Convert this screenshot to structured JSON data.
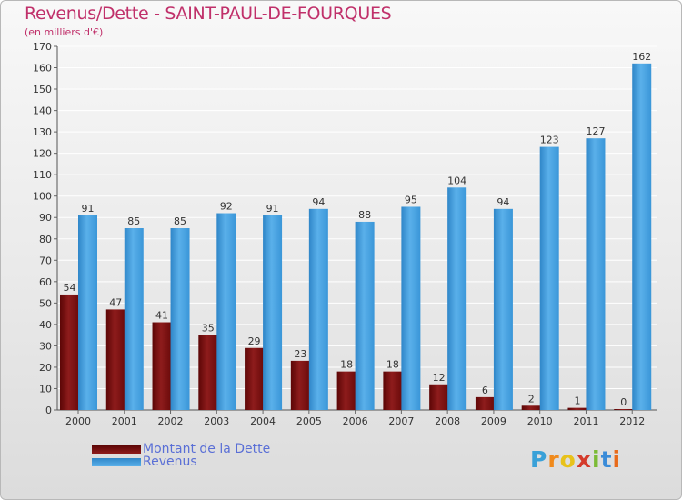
{
  "header": {
    "title": "Revenus/Dette - SAINT-PAUL-DE-FOURQUES",
    "subtitle": "(en milliers d'€)"
  },
  "logo": {
    "text": "Proxiti",
    "letters": [
      "P",
      "r",
      "o",
      "x",
      "i",
      "t",
      "i"
    ],
    "colors": [
      "#3aa1d8",
      "#f08a1c",
      "#e8c21a",
      "#d43a2a",
      "#7cbb36",
      "#3a8bd8",
      "#e86a1a"
    ]
  },
  "colors": {
    "dette": "#7a1212",
    "revenus": "#3d9bde",
    "title": "#c0306a",
    "legend_text": "#5a6fd6"
  },
  "chart_data": {
    "type": "bar",
    "title": "Revenus/Dette - SAINT-PAUL-DE-FOURQUES",
    "subtitle": "(en milliers d'€)",
    "xlabel": "",
    "ylabel": "",
    "ylim": [
      0,
      170
    ],
    "yticks": [
      0,
      10,
      20,
      30,
      40,
      50,
      60,
      70,
      80,
      90,
      100,
      110,
      120,
      130,
      140,
      150,
      160,
      170
    ],
    "grid": true,
    "legend_position": "bottom-left",
    "categories": [
      "2000",
      "2001",
      "2002",
      "2003",
      "2004",
      "2005",
      "2006",
      "2007",
      "2008",
      "2009",
      "2010",
      "2011",
      "2012"
    ],
    "series": [
      {
        "name": "Montant de la Dette",
        "values": [
          54,
          47,
          41,
          35,
          29,
          23,
          18,
          18,
          12,
          6,
          2,
          1,
          0
        ]
      },
      {
        "name": "Revenus",
        "values": [
          91,
          85,
          85,
          92,
          91,
          94,
          88,
          95,
          104,
          94,
          123,
          127,
          162
        ]
      }
    ]
  }
}
